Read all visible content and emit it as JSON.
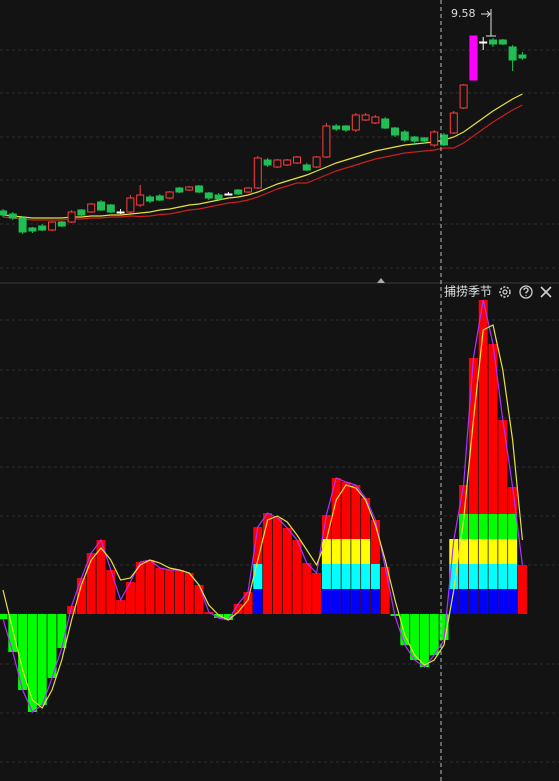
{
  "chart_data": [
    {
      "type": "candlestick",
      "annotation": "9.58",
      "ylim": [
        4.9,
        10.3
      ],
      "up_color": "#ff3c3c",
      "down_color": "#1fbf55",
      "flat_color": "#ffffff",
      "limit_color": "#ff00ff",
      "limit_up_indices": [
        48
      ],
      "open": [
        6.08,
        6.02,
        5.94,
        5.74,
        5.78,
        5.7,
        5.86,
        5.86,
        6.1,
        6.06,
        6.26,
        6.2,
        6.06,
        6.06,
        6.2,
        6.36,
        6.38,
        6.34,
        6.54,
        6.5,
        6.58,
        6.44,
        6.4,
        6.42,
        6.5,
        6.46,
        6.54,
        7.1,
        6.96,
        7.0,
        7.04,
        7.0,
        6.96,
        7.16,
        7.78,
        7.78,
        7.7,
        7.9,
        7.84,
        7.92,
        7.74,
        7.66,
        7.56,
        7.54,
        7.4,
        7.6,
        7.64,
        8.14,
        8.7,
        9.46,
        9.5,
        9.5,
        9.36,
        9.2
      ],
      "high": [
        6.12,
        6.06,
        5.98,
        5.76,
        5.82,
        5.88,
        5.88,
        6.1,
        6.12,
        6.24,
        6.3,
        6.22,
        6.12,
        6.4,
        6.6,
        6.4,
        6.42,
        6.48,
        6.56,
        6.58,
        6.6,
        6.46,
        6.44,
        6.46,
        6.52,
        6.56,
        7.18,
        7.14,
        7.12,
        7.12,
        7.18,
        7.04,
        7.18,
        7.84,
        7.82,
        7.8,
        8.04,
        8.04,
        8.0,
        7.96,
        7.76,
        7.7,
        7.58,
        7.56,
        7.7,
        7.64,
        8.08,
        8.62,
        9.58,
        9.56,
        9.54,
        9.52,
        9.4,
        9.26
      ],
      "low": [
        5.96,
        5.9,
        5.62,
        5.64,
        5.68,
        5.68,
        5.76,
        5.84,
        5.98,
        6.04,
        6.08,
        6.04,
        6.02,
        6.04,
        6.16,
        6.24,
        6.28,
        6.32,
        6.44,
        6.48,
        6.44,
        6.3,
        6.3,
        6.4,
        6.4,
        6.44,
        6.52,
        6.96,
        6.94,
        6.98,
        7.02,
        6.88,
        6.94,
        7.14,
        7.68,
        7.66,
        7.66,
        7.88,
        7.82,
        7.72,
        7.56,
        7.46,
        7.4,
        7.44,
        7.36,
        7.38,
        7.62,
        8.12,
        8.7,
        9.3,
        9.36,
        9.4,
        8.88,
        9.1
      ],
      "close": [
        6.0,
        5.94,
        5.66,
        5.68,
        5.7,
        5.86,
        5.78,
        6.06,
        6.0,
        6.22,
        6.1,
        6.06,
        6.06,
        6.34,
        6.4,
        6.28,
        6.3,
        6.46,
        6.46,
        6.56,
        6.46,
        6.34,
        6.32,
        6.42,
        6.42,
        6.54,
        7.14,
        7.0,
        7.1,
        7.1,
        7.16,
        6.9,
        7.16,
        7.78,
        7.72,
        7.7,
        8.0,
        8.0,
        7.96,
        7.74,
        7.6,
        7.5,
        7.48,
        7.48,
        7.66,
        7.4,
        8.04,
        8.6,
        9.58,
        9.46,
        9.42,
        9.42,
        9.1,
        9.14
      ],
      "series": [
        {
          "color": "#e8e040",
          "values": [
            6.0,
            5.98,
            5.96,
            5.94,
            5.94,
            5.94,
            5.94,
            5.96,
            5.96,
            5.98,
            5.98,
            6.0,
            6.0,
            6.02,
            6.04,
            6.06,
            6.1,
            6.12,
            6.16,
            6.2,
            6.22,
            6.26,
            6.3,
            6.34,
            6.36,
            6.4,
            6.46,
            6.54,
            6.62,
            6.68,
            6.74,
            6.8,
            6.88,
            6.96,
            7.04,
            7.1,
            7.16,
            7.22,
            7.28,
            7.32,
            7.36,
            7.4,
            7.42,
            7.44,
            7.46,
            7.5,
            7.56,
            7.66,
            7.8,
            7.94,
            8.08,
            8.2,
            8.32,
            8.42
          ]
        },
        {
          "color": "#c82020",
          "values": [
            5.96,
            5.94,
            5.92,
            5.9,
            5.9,
            5.9,
            5.9,
            5.92,
            5.92,
            5.94,
            5.94,
            5.96,
            5.96,
            5.98,
            5.97,
            5.98,
            6.01,
            6.02,
            6.06,
            6.1,
            6.12,
            6.16,
            6.2,
            6.24,
            6.26,
            6.3,
            6.36,
            6.44,
            6.52,
            6.58,
            6.64,
            6.64,
            6.72,
            6.8,
            6.88,
            6.94,
            7.0,
            7.06,
            7.12,
            7.16,
            7.2,
            7.24,
            7.26,
            7.28,
            7.3,
            7.34,
            7.34,
            7.44,
            7.58,
            7.72,
            7.86,
            7.98,
            8.1,
            8.2
          ]
        }
      ]
    },
    {
      "type": "bar",
      "title": "捕捞季节",
      "ylim": [
        -1.67,
        3.24
      ],
      "pos_color": "#ff0000",
      "neg_color": "#00ff00",
      "band_colors": [
        "#0000ff",
        "#00ffff",
        "#ffff00",
        "#00ff00"
      ],
      "band_step": 0.25,
      "values": [
        -0.05,
        -0.38,
        -0.76,
        -0.98,
        -0.91,
        -0.64,
        -0.34,
        0.08,
        0.36,
        0.61,
        0.74,
        0.44,
        0.14,
        0.32,
        0.52,
        0.54,
        0.46,
        0.44,
        0.44,
        0.41,
        0.29,
        0.02,
        -0.04,
        -0.06,
        0.1,
        0.22,
        0.87,
        1.01,
        0.96,
        0.86,
        0.74,
        0.51,
        0.41,
        0.99,
        1.36,
        1.32,
        1.29,
        1.16,
        0.94,
        0.47,
        -0.02,
        -0.31,
        -0.46,
        -0.53,
        -0.41,
        -0.26,
        0.74,
        1.29,
        2.56,
        3.14,
        2.7,
        1.94,
        1.27,
        0.49
      ],
      "band_levels": [
        0,
        0,
        0,
        0,
        0,
        0,
        0,
        0,
        0,
        0,
        0,
        0,
        0,
        0,
        0,
        0,
        0,
        0,
        0,
        0,
        0,
        0,
        0,
        0,
        0,
        0,
        2,
        0,
        0,
        0,
        0,
        0,
        0,
        3,
        3,
        3,
        3,
        3,
        2,
        0,
        0,
        0,
        0,
        0,
        0,
        0,
        3,
        4,
        4,
        4,
        4,
        4,
        4,
        0
      ],
      "line_color": "#b030ff",
      "series": [
        {
          "color": "#e8e040",
          "values": [
            0.24,
            -0.16,
            -0.56,
            -0.86,
            -0.94,
            -0.76,
            -0.46,
            -0.06,
            0.29,
            0.54,
            0.66,
            0.54,
            0.34,
            0.36,
            0.49,
            0.54,
            0.51,
            0.46,
            0.44,
            0.41,
            0.29,
            0.09,
            -0.01,
            -0.06,
            0.02,
            0.14,
            0.54,
            0.94,
            0.98,
            0.92,
            0.79,
            0.64,
            0.49,
            0.74,
            1.14,
            1.29,
            1.26,
            1.14,
            0.89,
            0.54,
            0.14,
            -0.21,
            -0.41,
            -0.51,
            -0.46,
            -0.31,
            0.24,
            0.94,
            1.94,
            2.84,
            2.89,
            2.44,
            1.74,
            0.74
          ]
        }
      ]
    }
  ]
}
